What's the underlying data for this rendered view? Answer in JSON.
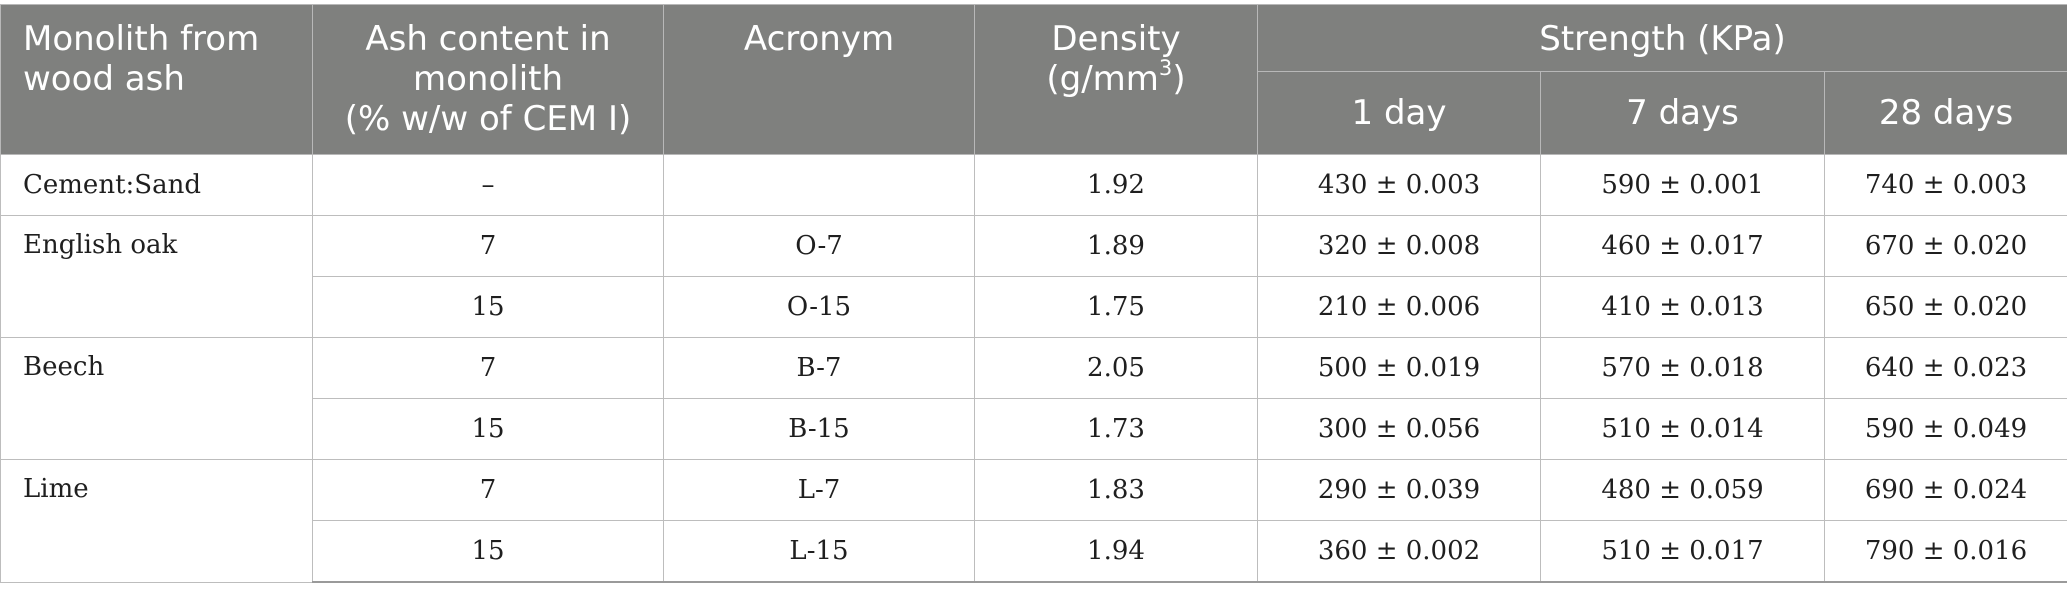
{
  "table": {
    "headers": {
      "monolith": "Monolith from wood ash",
      "ash_content_line1": "Ash content in",
      "ash_content_line2": "monolith",
      "ash_content_line3": "(% w/w of CEM I)",
      "acronym": "Acronym",
      "density_line1": "Density",
      "density_line2_prefix": "(g/mm",
      "density_sup": "3",
      "density_line2_suffix": ")",
      "strength": "Strength (KPa)",
      "day1": "1 day",
      "day7": "7 days",
      "day28": "28 days"
    },
    "groups": {
      "cement": "Cement:Sand",
      "oak": "English oak",
      "beech": "Beech",
      "lime": "Lime"
    },
    "rows": [
      {
        "ash": "–",
        "acronym": "",
        "density": "1.92",
        "d1": "430 ± 0.003",
        "d7": "590 ± 0.001",
        "d28": "740 ± 0.003"
      },
      {
        "ash": "7",
        "acronym": "O-7",
        "density": "1.89",
        "d1": "320 ± 0.008",
        "d7": "460 ± 0.017",
        "d28": "670 ± 0.020"
      },
      {
        "ash": "15",
        "acronym": "O-15",
        "density": "1.75",
        "d1": "210 ± 0.006",
        "d7": "410 ± 0.013",
        "d28": "650 ± 0.020"
      },
      {
        "ash": "7",
        "acronym": "B-7",
        "density": "2.05",
        "d1": "500 ± 0.019",
        "d7": "570 ± 0.018",
        "d28": "640 ± 0.023"
      },
      {
        "ash": "15",
        "acronym": "B-15",
        "density": "1.73",
        "d1": "300 ± 0.056",
        "d7": "510 ± 0.014",
        "d28": "590 ± 0.049"
      },
      {
        "ash": "7",
        "acronym": "L-7",
        "density": "1.83",
        "d1": "290 ± 0.039",
        "d7": "480 ± 0.059",
        "d28": "690 ± 0.024"
      },
      {
        "ash": "15",
        "acronym": "L-15",
        "density": "1.94",
        "d1": "360 ± 0.002",
        "d7": "510 ± 0.017",
        "d28": "790 ± 0.016"
      }
    ]
  }
}
